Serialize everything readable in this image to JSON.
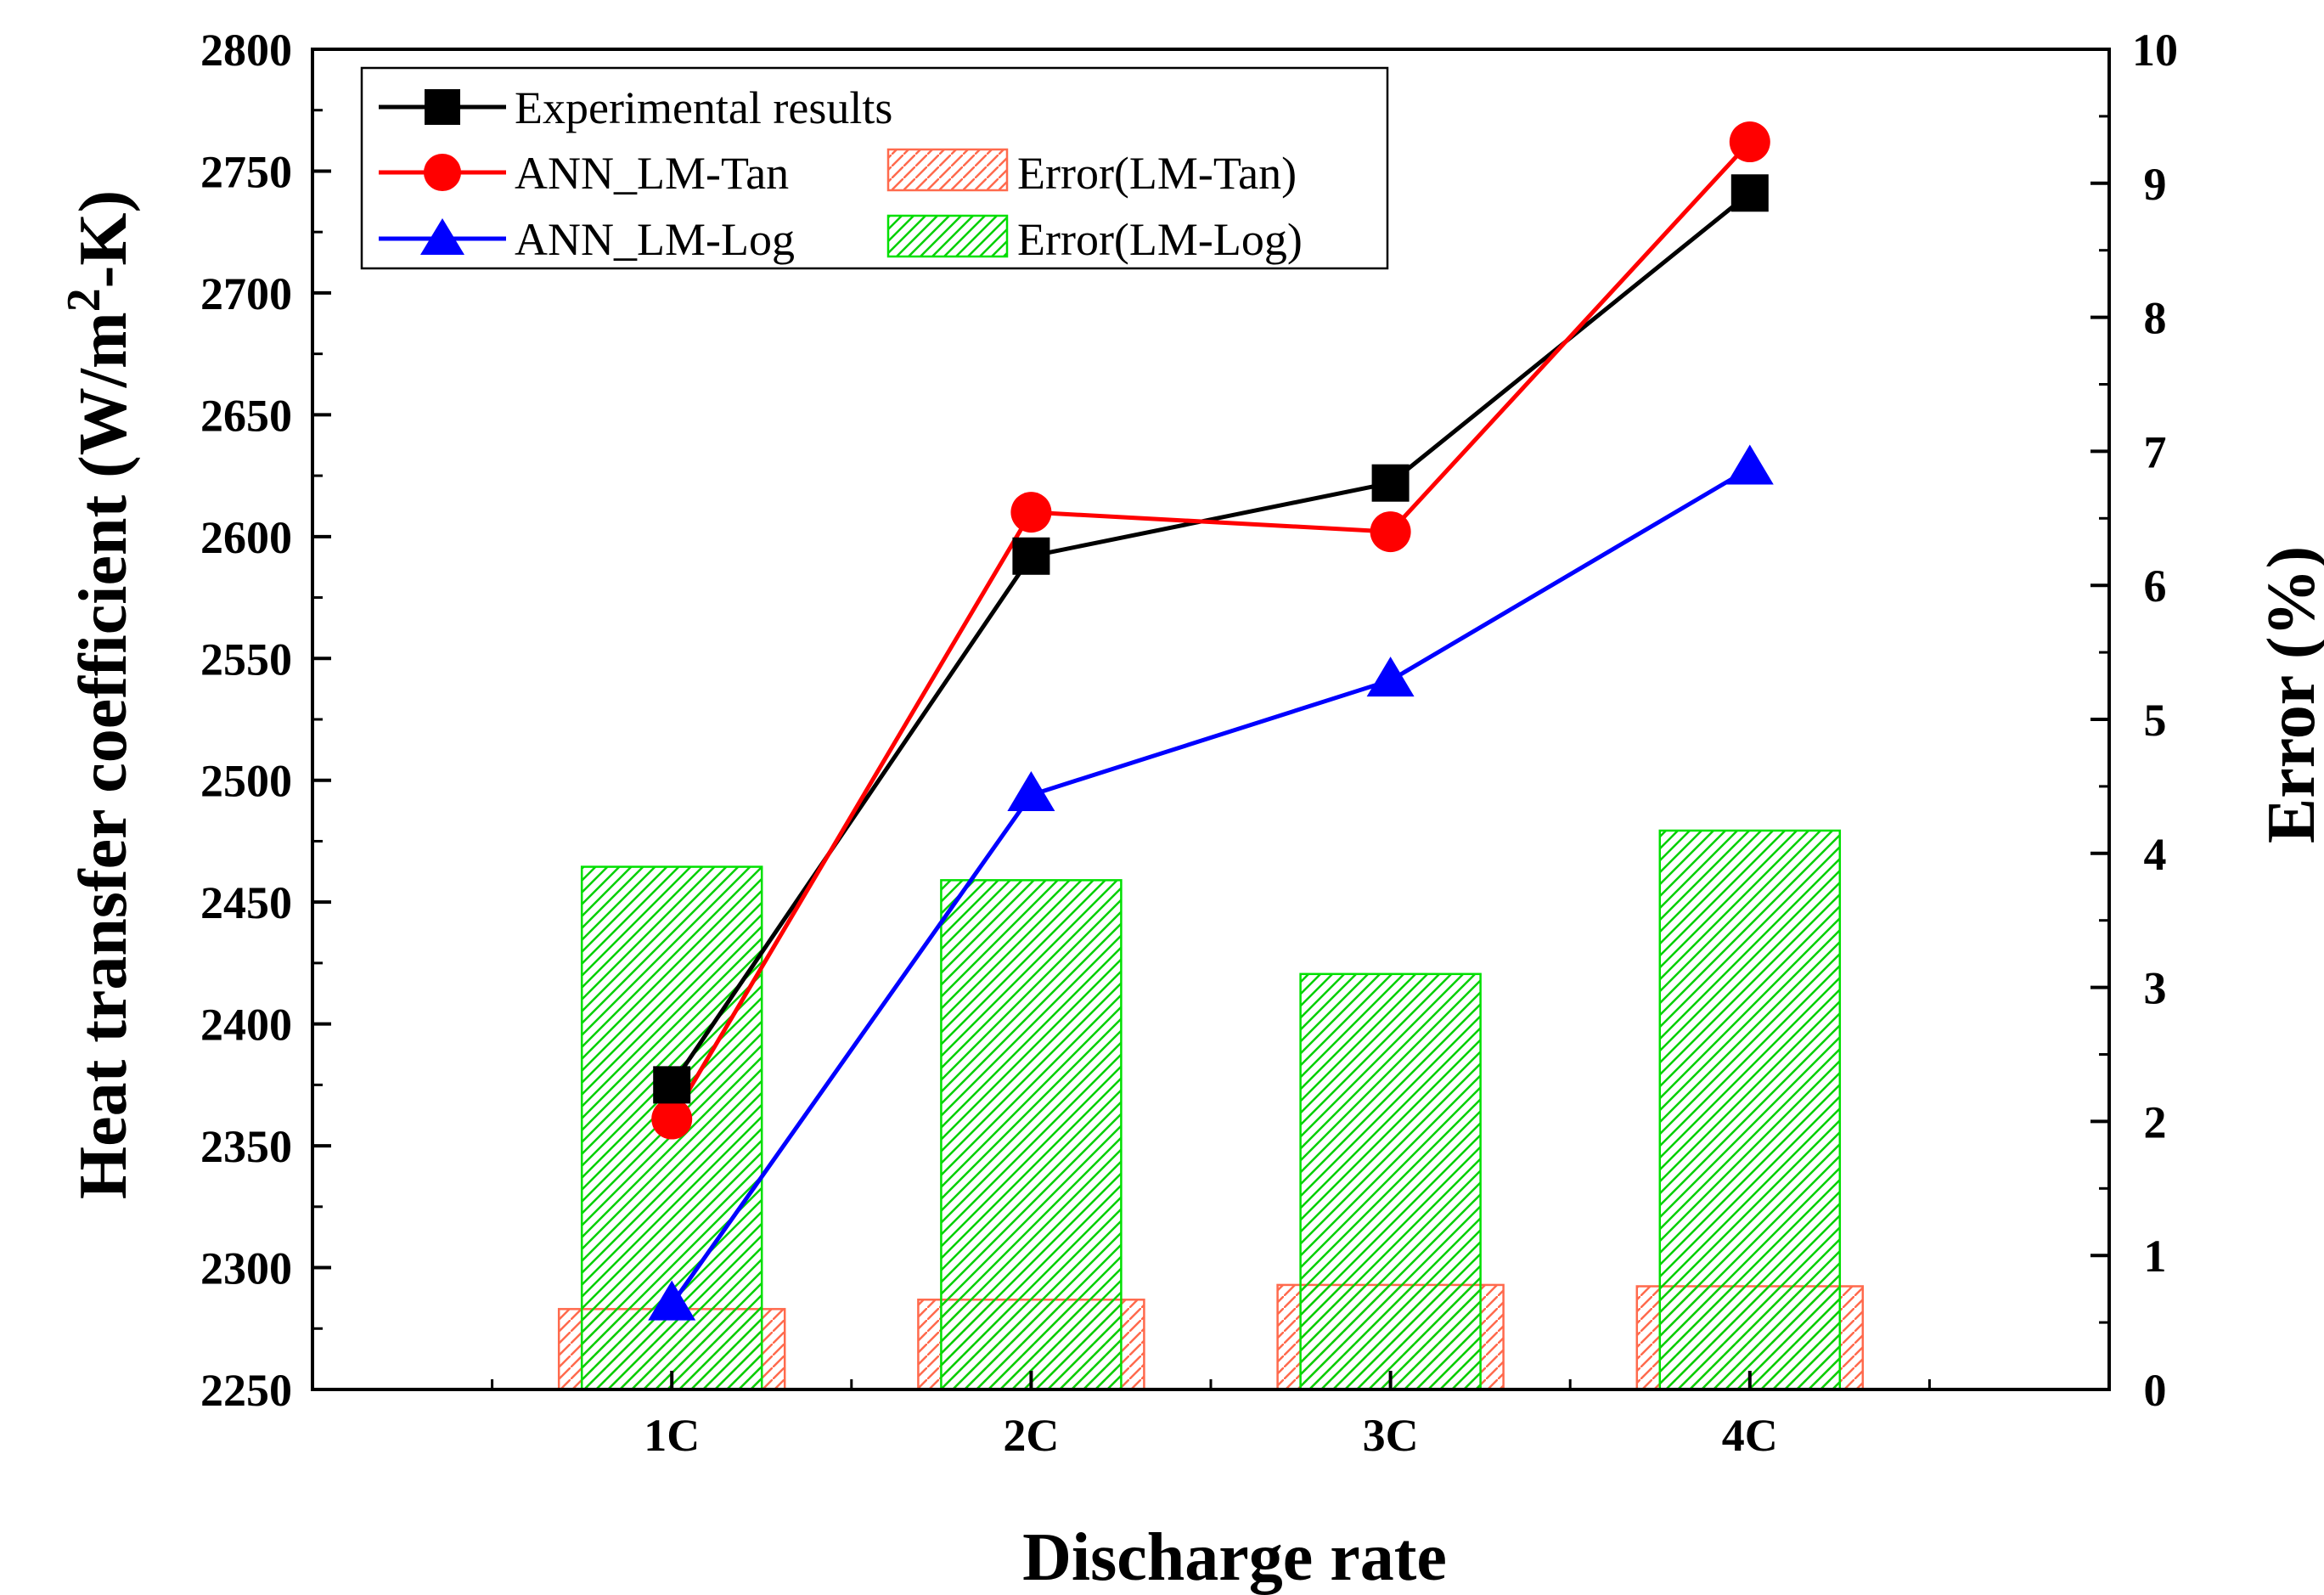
{
  "chart_data": {
    "type": "line+bar",
    "xlabel": "Discharge rate",
    "ylabel_left": {
      "main": "Heat transfer coefficient (W/m",
      "sup": "2",
      "tail": "-K)"
    },
    "ylabel_right": "Error (%)",
    "categories": [
      "1C",
      "2C",
      "3C",
      "4C"
    ],
    "y_left": {
      "lim": [
        2250,
        2800
      ],
      "ticks": [
        "2250",
        "2300",
        "2350",
        "2400",
        "2450",
        "2500",
        "2550",
        "2600",
        "2650",
        "2700",
        "2750",
        "2800"
      ]
    },
    "y_right": {
      "lim": [
        0,
        10
      ],
      "ticks": [
        "0",
        "1",
        "2",
        "3",
        "4",
        "5",
        "6",
        "7",
        "8",
        "9",
        "10"
      ]
    },
    "series": [
      {
        "name": "Experimental results",
        "kind": "line",
        "marker": "square",
        "color": "#000000",
        "axis": "left",
        "values": [
          2375,
          2592,
          2622,
          2741
        ]
      },
      {
        "name": "ANN_LM-Tan",
        "kind": "line",
        "marker": "circle",
        "color": "#ff0000",
        "axis": "left",
        "values": [
          2361,
          2610,
          2602,
          2762
        ]
      },
      {
        "name": "ANN_LM-Log",
        "kind": "line",
        "marker": "triangle",
        "color": "#0000ff",
        "axis": "left",
        "values": [
          2285,
          2494,
          2541,
          2628
        ]
      },
      {
        "name": "Error(LM-Tan)",
        "kind": "bar",
        "hatch": "back",
        "color": "#ff6a4d",
        "axis": "right",
        "values": [
          0.6,
          0.67,
          0.78,
          0.77
        ]
      },
      {
        "name": "Error(LM-Log)",
        "kind": "bar",
        "hatch": "forward",
        "color": "#00e000",
        "axis": "right",
        "values": [
          3.9,
          3.8,
          3.1,
          4.17
        ]
      }
    ],
    "legend_position": "top-left"
  }
}
